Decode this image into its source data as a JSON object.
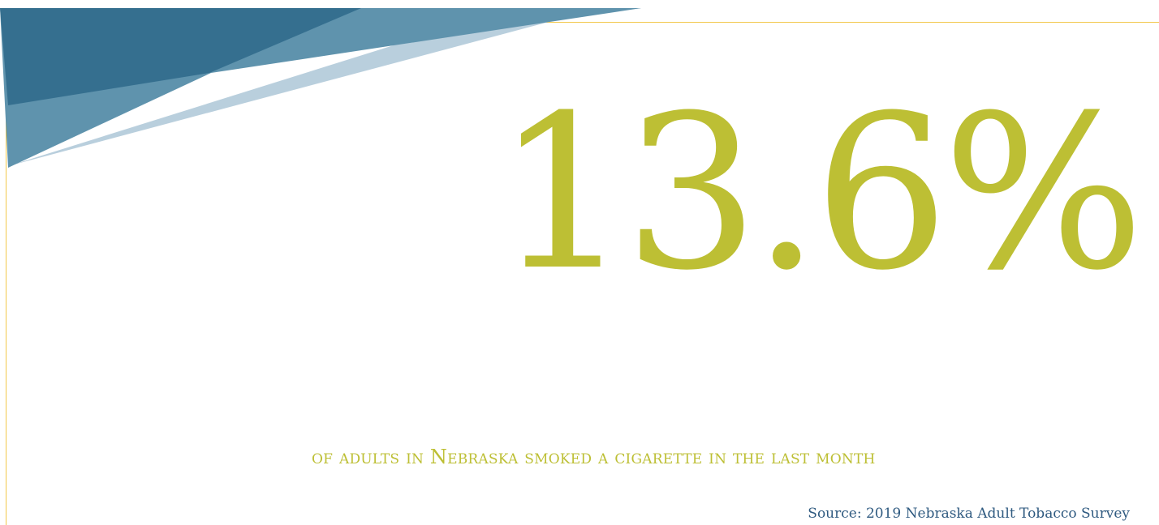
{
  "slide": {
    "statistic": "13.6%",
    "caption": "of adults in Nebraska smoked a cigarette in the last month",
    "source": "Source: 2019 Nebraska Adult Tobacco Survey"
  },
  "colors": {
    "accent": "#bdbf34",
    "frame_line": "#f2c84b",
    "source_text": "#2f5a80",
    "banner_dark": "#356f8f",
    "banner_mid": "#5f93ad",
    "banner_light": "#b9cfdd"
  }
}
